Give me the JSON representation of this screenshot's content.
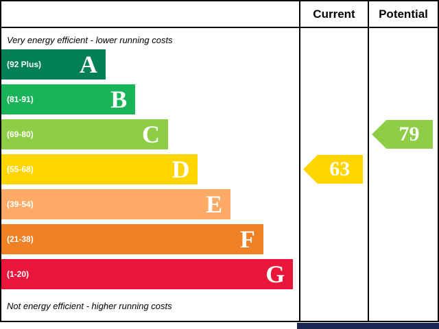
{
  "chart_data": {
    "type": "bar",
    "subtype": "epc-energy-efficiency-rating",
    "top_caption": "Very energy efficient - lower running costs",
    "bottom_caption": "Not energy efficient - higher running costs",
    "bands": [
      {
        "letter": "A",
        "range_label": "(92 Plus)",
        "color": "#008054",
        "width_pct": 35
      },
      {
        "letter": "B",
        "range_label": "(81-91)",
        "color": "#19b459",
        "width_pct": 45
      },
      {
        "letter": "C",
        "range_label": "(69-80)",
        "color": "#8dce46",
        "width_pct": 56
      },
      {
        "letter": "D",
        "range_label": "(55-68)",
        "color": "#ffd500",
        "width_pct": 66
      },
      {
        "letter": "E",
        "range_label": "(39-54)",
        "color": "#fcaa65",
        "width_pct": 77
      },
      {
        "letter": "F",
        "range_label": "(21-38)",
        "color": "#ef8023",
        "width_pct": 88
      },
      {
        "letter": "G",
        "range_label": "(1-20)",
        "color": "#e9153b",
        "width_pct": 98
      }
    ],
    "current": {
      "value": "63",
      "band": "D",
      "band_index": 3,
      "arrow_color": "#ffd500"
    },
    "potential": {
      "value": "79",
      "band": "C",
      "band_index": 2,
      "arrow_color": "#8dce46"
    },
    "footer_strip_color": "#1c2653"
  },
  "header": {
    "current_label": "Current",
    "potential_label": "Potential"
  }
}
